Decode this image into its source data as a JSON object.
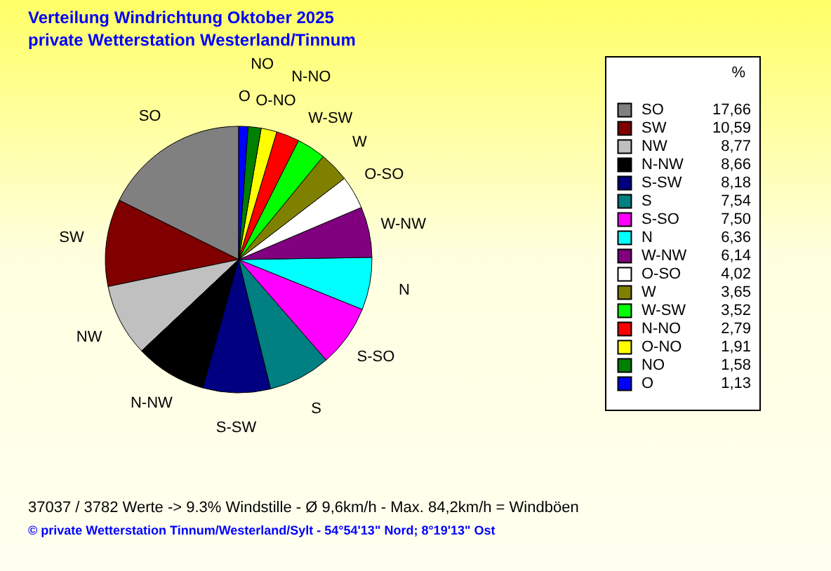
{
  "chart_data": {
    "type": "pie",
    "title": "Verteilung Windrichtung    Oktober 2025",
    "subtitle": "private Wetterstation Westerland/Tinnum",
    "legend_title": "%",
    "legend": "right",
    "categories": [
      "SO",
      "SW",
      "NW",
      "N-NW",
      "S-SW",
      "S",
      "S-SO",
      "N",
      "W-NW",
      "O-SO",
      "W",
      "W-SW",
      "N-NO",
      "O-NO",
      "NO",
      "O"
    ],
    "values": [
      17.66,
      10.59,
      8.77,
      8.66,
      8.18,
      7.54,
      7.5,
      6.36,
      6.14,
      4.02,
      3.65,
      3.52,
      2.79,
      1.91,
      1.58,
      1.13
    ],
    "value_labels": [
      "17,66",
      "10,59",
      "8,77",
      "8,66",
      "8,18",
      "7,54",
      "7,50",
      "6,36",
      "6,14",
      "4,02",
      "3,65",
      "3,52",
      "2,79",
      "1,91",
      "1,58",
      "1,13"
    ],
    "colors": [
      "#808080",
      "#800000",
      "#c0c0c0",
      "#000000",
      "#000080",
      "#008080",
      "#ff00ff",
      "#00ffff",
      "#800080",
      "#ffffff",
      "#808000",
      "#00ff00",
      "#ff0000",
      "#ffff00",
      "#008000",
      "#0000ff"
    ],
    "annotations": [
      "37037 / 3782 Werte  -> 9.3% Windstille   -   Ø 9,6km/h  -  Max. 84,2km/h = Windböen",
      "© private Wetterstation Tinnum/Westerland/Sylt   -   54°54'13\" Nord; 8°19'13\" Ost"
    ]
  }
}
